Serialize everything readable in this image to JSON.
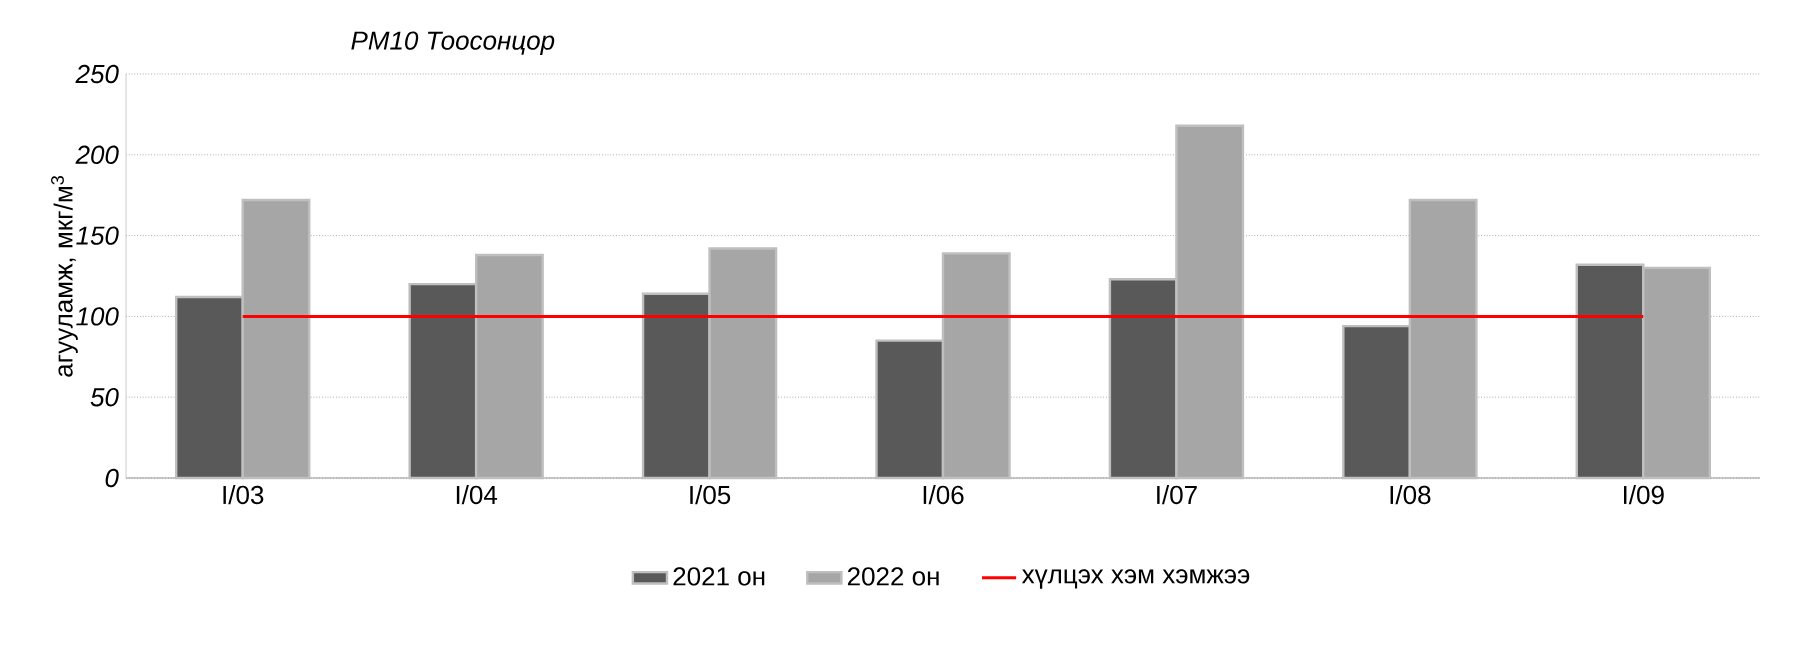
{
  "chart_data": {
    "type": "bar",
    "title": "PM10 Тоосонцор",
    "ylabel": "агууламж, мкг/м$^{3}$",
    "categories": [
      "I/03",
      "I/04",
      "I/05",
      "I/06",
      "I/07",
      "I/08",
      "I/09"
    ],
    "series": [
      {
        "name": "2021 он",
        "color": "#595959",
        "values": [
          112,
          120,
          114,
          85,
          123,
          94,
          132
        ]
      },
      {
        "name": "2022 он",
        "color": "#a6a6a6",
        "values": [
          172,
          138,
          142,
          139,
          218,
          172,
          130
        ]
      }
    ],
    "ref_lines": [
      {
        "axis": "y",
        "value": 100,
        "label": "хүлцэх хэм хэмжээ",
        "color": "#ff0000",
        "line_style": "solid"
      }
    ],
    "ylim": [
      0,
      250
    ],
    "yticks": [
      0,
      50,
      100,
      150,
      200,
      250
    ],
    "grid": "y",
    "legend": "bottom"
  }
}
